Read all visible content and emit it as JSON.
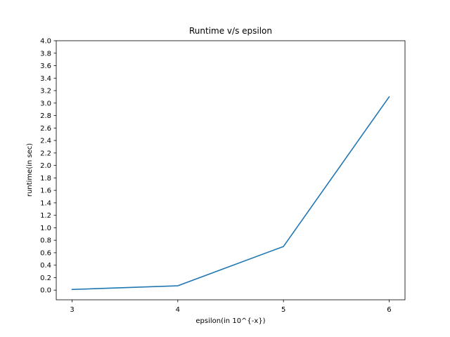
{
  "chart_data": {
    "type": "line",
    "title": "Runtime v/s epsilon",
    "xlabel": "epsilon(in 10^{-x})",
    "ylabel": "runtime(in sec)",
    "x": [
      3,
      4,
      5,
      6
    ],
    "series": [
      {
        "values": [
          0.01,
          0.07,
          0.7,
          3.1
        ],
        "color": "#1f77b4"
      }
    ],
    "xlim": [
      2.85,
      6.15
    ],
    "ylim": [
      -0.155,
      4.0
    ],
    "xticks": [
      3,
      4,
      5,
      6
    ],
    "yticks": [
      0.0,
      0.2,
      0.4,
      0.6,
      0.8,
      1.0,
      1.2,
      1.4,
      1.6,
      1.8,
      2.0,
      2.2,
      2.4,
      2.6,
      2.8,
      3.0,
      3.2,
      3.4,
      3.6,
      3.8,
      4.0
    ],
    "xtick_labels": [
      "3",
      "4",
      "5",
      "6"
    ],
    "ytick_labels": [
      "0.0",
      "0.2",
      "0.4",
      "0.6",
      "0.8",
      "1.0",
      "1.2",
      "1.4",
      "1.6",
      "1.8",
      "2.0",
      "2.2",
      "2.4",
      "2.6",
      "2.8",
      "3.0",
      "3.2",
      "3.4",
      "3.6",
      "3.8",
      "4.0"
    ],
    "grid": false,
    "legend": "none"
  }
}
